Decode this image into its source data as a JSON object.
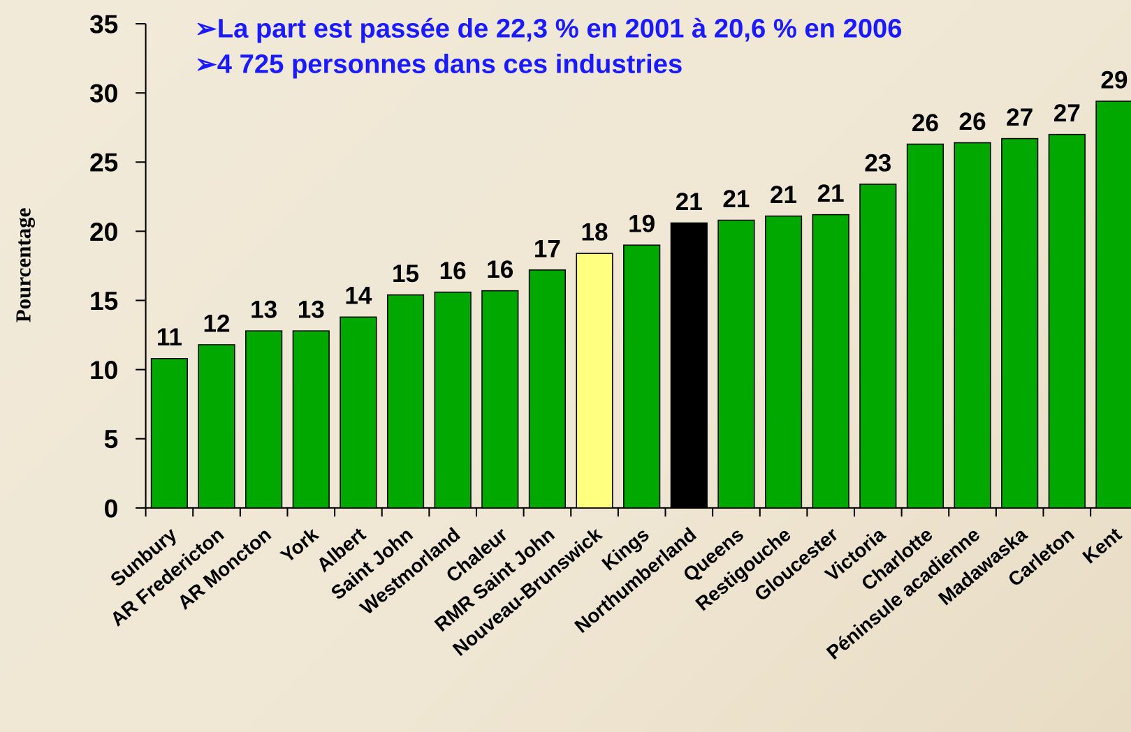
{
  "chart_data": {
    "type": "bar",
    "annotations": [
      "➢La part est passée de 22,3 % en 2001 à 20,6 % en 2006",
      "➢4 725 personnes dans ces industries"
    ],
    "y_label": "Pourcentage",
    "categories": [
      "Sunbury",
      "AR Fredericton",
      "AR Moncton",
      "York",
      "Albert",
      "Saint John",
      "Westmorland",
      "Chaleur",
      "RMR Saint John",
      "Nouveau-Brunswick",
      "Kings",
      "Northumberland",
      "Queens",
      "Restigouche",
      "Gloucester",
      "Victoria",
      "Charlotte",
      "Péninsule acadienne",
      "Madawaska",
      "Carleton",
      "Kent"
    ],
    "values": [
      10.8,
      11.8,
      12.8,
      12.8,
      13.8,
      15.4,
      15.6,
      15.7,
      17.2,
      18.4,
      19.0,
      20.6,
      20.8,
      21.1,
      21.2,
      23.4,
      26.3,
      26.4,
      26.7,
      27.0,
      29.4
    ],
    "value_labels": [
      "11",
      "12",
      "13",
      "13",
      "14",
      "15",
      "16",
      "16",
      "17",
      "18",
      "19",
      "21",
      "21",
      "21",
      "21",
      "23",
      "26",
      "26",
      "27",
      "27",
      "29"
    ],
    "colors": [
      "#00a800",
      "#00a800",
      "#00a800",
      "#00a800",
      "#00a800",
      "#00a800",
      "#00a800",
      "#00a800",
      "#00a800",
      "#ffff80",
      "#00a800",
      "#000000",
      "#00a800",
      "#00a800",
      "#00a800",
      "#00a800",
      "#00a800",
      "#00a800",
      "#00a800",
      "#00a800",
      "#00a800"
    ],
    "ylim": [
      0,
      35
    ],
    "yticks": [
      0,
      5,
      10,
      15,
      20,
      25,
      30,
      35
    ],
    "grid": false
  }
}
